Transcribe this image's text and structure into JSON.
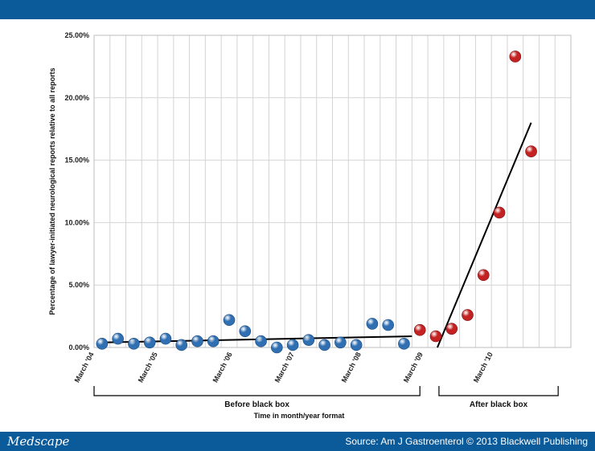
{
  "footer": {
    "brand": "Medscape",
    "source": "Source: Am J Gastroenterol © 2013 Blackwell Publishing"
  },
  "colors": {
    "bar": "#0b5a9a",
    "before": "#2f6fb2",
    "after": "#c42222",
    "grid": "#d4d4d4",
    "trend": "#000000"
  },
  "chart_data": {
    "type": "scatter",
    "title": "",
    "xlabel": "Time in month/year format",
    "ylabel": "Percentage of lawyer-initiated neurological reports relative to all reports",
    "ylim": [
      0,
      25
    ],
    "yticks": [
      0,
      5,
      10,
      15,
      20,
      25
    ],
    "ytick_labels": [
      "0.00%",
      "5.00%",
      "10.00%",
      "15.00%",
      "20.00%",
      "25.00%"
    ],
    "x_range": [
      0,
      30
    ],
    "xticks": [
      {
        "x": 0,
        "label": "March '04"
      },
      {
        "x": 4,
        "label": "March '05"
      },
      {
        "x": 8.7,
        "label": "March '06"
      },
      {
        "x": 12.6,
        "label": "March '07"
      },
      {
        "x": 16.8,
        "label": "March '08"
      },
      {
        "x": 20.7,
        "label": "March '09"
      },
      {
        "x": 25.1,
        "label": "March '10"
      }
    ],
    "grid": true,
    "periods": [
      {
        "label": "Before black box",
        "x_start": 0,
        "x_end": 20.5
      },
      {
        "label": "After black box",
        "x_start": 21.7,
        "x_end": 29.2
      }
    ],
    "series": [
      {
        "group": "before",
        "points": [
          {
            "x": 0.5,
            "y": 0.3
          },
          {
            "x": 1.5,
            "y": 0.7
          },
          {
            "x": 2.5,
            "y": 0.3
          },
          {
            "x": 3.5,
            "y": 0.4
          },
          {
            "x": 4.5,
            "y": 0.7
          },
          {
            "x": 5.5,
            "y": 0.2
          },
          {
            "x": 6.5,
            "y": 0.5
          },
          {
            "x": 7.5,
            "y": 0.5
          },
          {
            "x": 8.5,
            "y": 2.2
          },
          {
            "x": 9.5,
            "y": 1.3
          },
          {
            "x": 10.5,
            "y": 0.5
          },
          {
            "x": 11.5,
            "y": 0.0
          },
          {
            "x": 12.5,
            "y": 0.2
          },
          {
            "x": 13.5,
            "y": 0.6
          },
          {
            "x": 14.5,
            "y": 0.2
          },
          {
            "x": 15.5,
            "y": 0.4
          },
          {
            "x": 16.5,
            "y": 0.2
          },
          {
            "x": 17.5,
            "y": 1.9
          },
          {
            "x": 18.5,
            "y": 1.8
          },
          {
            "x": 19.5,
            "y": 0.3
          }
        ]
      },
      {
        "group": "after",
        "points": [
          {
            "x": 20.5,
            "y": 1.4
          },
          {
            "x": 21.5,
            "y": 0.9
          },
          {
            "x": 22.5,
            "y": 1.5
          },
          {
            "x": 23.5,
            "y": 2.6
          },
          {
            "x": 24.5,
            "y": 5.8
          },
          {
            "x": 25.5,
            "y": 10.8
          },
          {
            "x": 26.5,
            "y": 23.3
          },
          {
            "x": 27.5,
            "y": 15.7
          }
        ]
      }
    ],
    "trendlines": [
      {
        "group": "before",
        "x": [
          0.5,
          20.0
        ],
        "y": [
          0.4,
          0.9
        ]
      },
      {
        "group": "after",
        "x": [
          21.6,
          27.5
        ],
        "y": [
          0.0,
          18.0
        ]
      }
    ]
  }
}
